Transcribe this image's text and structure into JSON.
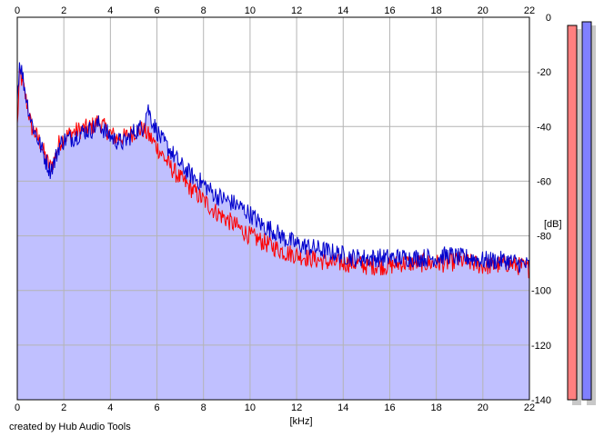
{
  "credit": "created by Hub Audio Tools",
  "chart_data": {
    "type": "line",
    "xlabel": "[kHz]",
    "ylabel": "[dB]",
    "xlim": [
      0,
      22
    ],
    "ylim": [
      -140,
      0
    ],
    "x_ticks": [
      "0",
      "2",
      "4",
      "6",
      "8",
      "10",
      "12",
      "14",
      "16",
      "18",
      "20",
      "22"
    ],
    "y_ticks": [
      "0",
      "-20",
      "-40",
      "-60",
      "-80",
      "-100",
      "-120",
      "-140"
    ],
    "grid": true,
    "fill_color": "#c0c0ff",
    "series": [
      {
        "color": "#ff0000",
        "x": [
          0,
          0.1,
          0.2,
          0.4,
          0.6,
          0.8,
          1.0,
          1.2,
          1.4,
          1.6,
          1.8,
          2.0,
          2.4,
          2.8,
          3.2,
          3.5,
          3.8,
          4.2,
          4.6,
          5.0,
          5.4,
          5.8,
          6.2,
          6.6,
          7.0,
          7.5,
          8.0,
          8.5,
          9.0,
          9.5,
          10.0,
          10.5,
          11.0,
          11.5,
          12.0,
          12.5,
          13.0,
          13.5,
          14.0,
          14.5,
          15.0,
          15.5,
          16.0,
          16.5,
          17.0,
          17.5,
          18.0,
          18.5,
          19.0,
          19.5,
          20.0,
          20.5,
          21.0,
          21.5,
          22.0
        ],
        "y": [
          -40,
          -21,
          -23,
          -31,
          -40,
          -43,
          -46,
          -51,
          -55,
          -52,
          -46,
          -44,
          -42,
          -41,
          -40,
          -38,
          -41,
          -44,
          -44,
          -42,
          -41,
          -45,
          -50,
          -55,
          -59,
          -63,
          -67,
          -71,
          -74,
          -77,
          -80,
          -82,
          -84,
          -86,
          -87,
          -88,
          -89,
          -90,
          -90,
          -90,
          -91,
          -91,
          -91,
          -90,
          -90,
          -90,
          -90,
          -90,
          -89,
          -90,
          -91,
          -91,
          -90,
          -91,
          -92
        ]
      },
      {
        "color": "#0000cc",
        "x": [
          0,
          0.1,
          0.2,
          0.4,
          0.6,
          0.8,
          1.0,
          1.2,
          1.4,
          1.6,
          1.8,
          2.0,
          2.4,
          2.8,
          3.2,
          3.5,
          3.8,
          4.2,
          4.6,
          5.0,
          5.4,
          5.6,
          5.8,
          6.2,
          6.6,
          7.0,
          7.5,
          8.0,
          8.5,
          9.0,
          9.5,
          10.0,
          10.5,
          11.0,
          11.5,
          12.0,
          12.5,
          13.0,
          13.5,
          14.0,
          14.5,
          15.0,
          15.5,
          16.0,
          16.5,
          17.0,
          17.5,
          18.0,
          18.5,
          19.0,
          19.5,
          20.0,
          20.5,
          21.0,
          21.5,
          22.0
        ],
        "y": [
          -30,
          -16,
          -20,
          -30,
          -38,
          -43,
          -47,
          -52,
          -56,
          -53,
          -47,
          -45,
          -44,
          -42,
          -41,
          -39,
          -42,
          -45,
          -46,
          -42,
          -40,
          -33,
          -38,
          -45,
          -49,
          -54,
          -58,
          -61,
          -65,
          -67,
          -69,
          -72,
          -76,
          -78,
          -81,
          -83,
          -84,
          -85,
          -86,
          -87,
          -88,
          -88,
          -88,
          -88,
          -88,
          -88,
          -88,
          -88,
          -87,
          -88,
          -88,
          -89,
          -89,
          -89,
          -90,
          -91
        ]
      }
    ],
    "level_meters": [
      {
        "color": "#ff8080"
      },
      {
        "color": "#8080ff"
      }
    ]
  }
}
